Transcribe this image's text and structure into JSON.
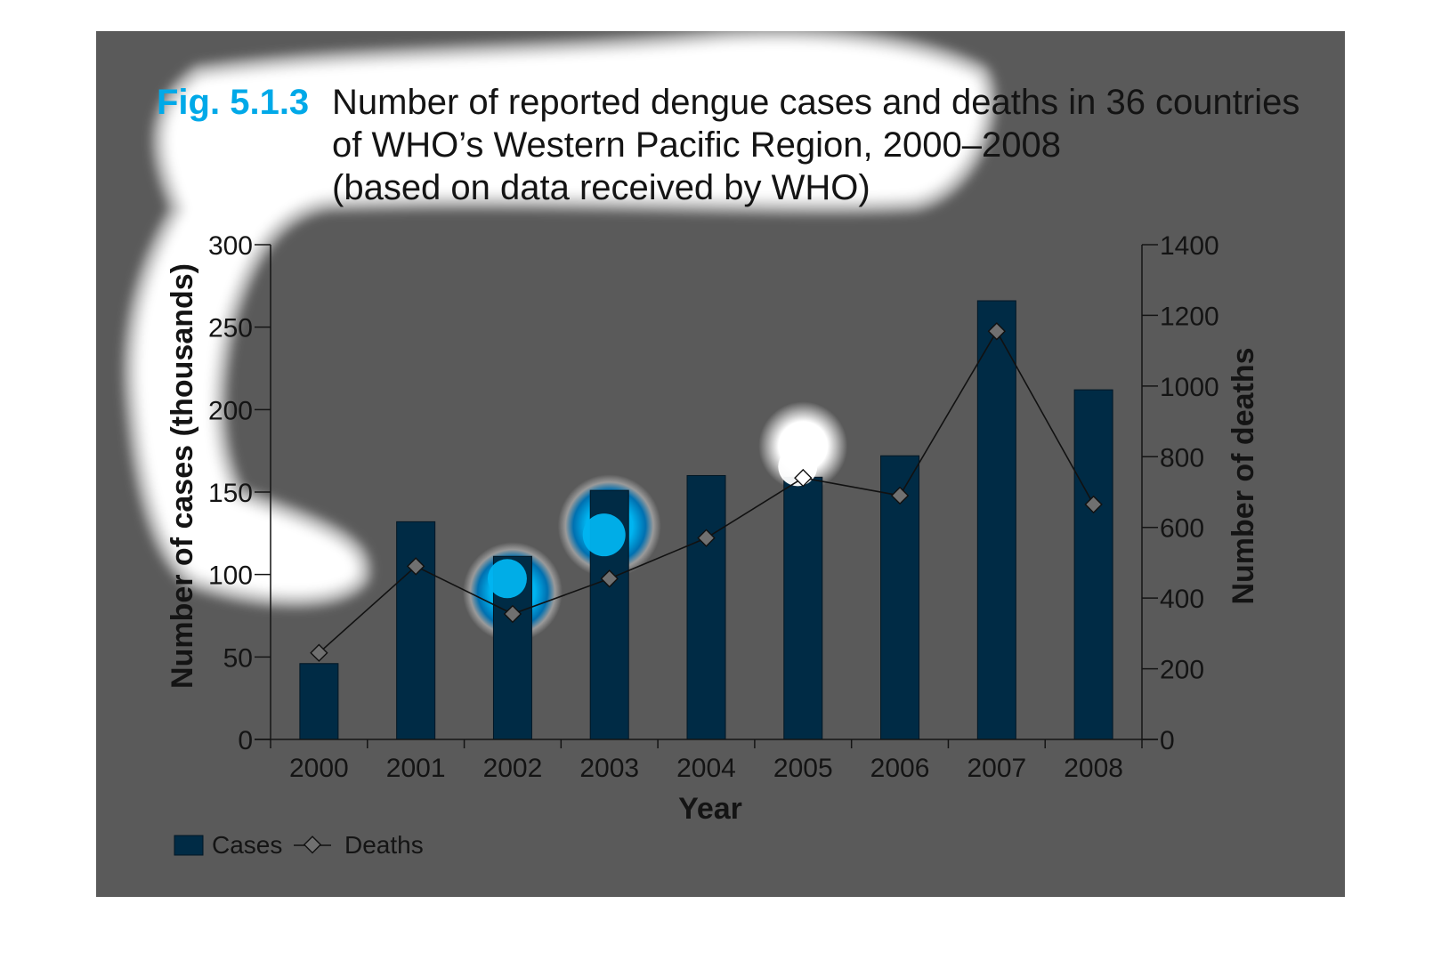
{
  "colors": {
    "panel_background": "#5a5a5a",
    "bar_fill": "#002b45",
    "bar_stroke": "#001624",
    "line": "#111111",
    "marker_fill": "#707070",
    "fig_number": "#00a9e8",
    "text": "#141414",
    "highlight_white": "#ffffff",
    "highlight_cyan": "#00b4f0"
  },
  "figure": {
    "number": "Fig. 5.1.3",
    "title_lines": [
      "Number of reported dengue cases and deaths in 36 countries",
      "of WHO’s Western Pacific Region, 2000–2008",
      "(based on data received by WHO)"
    ]
  },
  "chart_data": {
    "type": "bar",
    "categories": [
      "2000",
      "2001",
      "2002",
      "2003",
      "2004",
      "2005",
      "2006",
      "2007",
      "2008"
    ],
    "xlabel": "Year",
    "ylabel": "Number of cases (thousands)",
    "y2label": "Number of deaths",
    "ylim": [
      0,
      300
    ],
    "y2lim": [
      0,
      1400
    ],
    "yticks": [
      "0",
      "50",
      "100",
      "150",
      "200",
      "250",
      "300"
    ],
    "y2ticks": [
      "0",
      "200",
      "400",
      "600",
      "800",
      "1000",
      "1200",
      "1400"
    ],
    "series": [
      {
        "name": "Cases",
        "type": "bar",
        "axis": "left",
        "values": [
          46,
          132,
          111,
          151,
          160,
          159,
          172,
          266,
          212
        ]
      },
      {
        "name": "Deaths",
        "type": "line",
        "marker": "diamond",
        "axis": "right",
        "values": [
          245,
          490,
          355,
          455,
          570,
          740,
          690,
          1155,
          665
        ]
      }
    ],
    "legend": {
      "position": "bottom-left"
    },
    "grid": false,
    "annotations": "white and cyan glow highlights drawn over the title, y-axis and several bars"
  }
}
